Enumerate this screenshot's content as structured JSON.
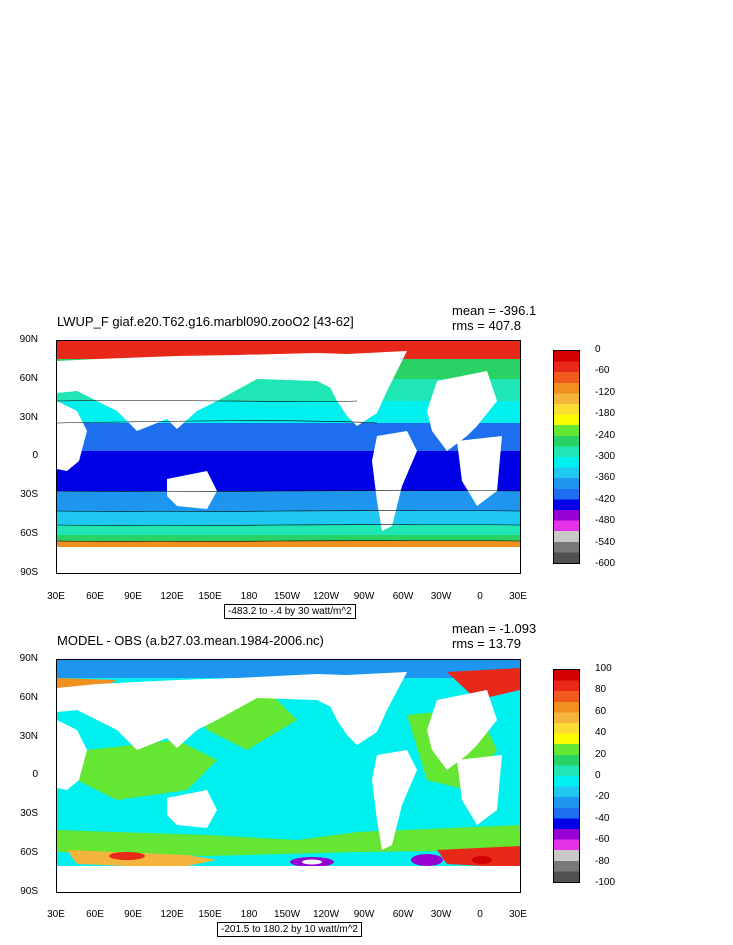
{
  "panels": [
    {
      "title": "LWUP_F giaf.e20.T62.g16.marbl090.zooO2 [43-62]",
      "mean": "mean = -396.1",
      "rms": "rms = 407.8",
      "range": "-483.2 to -.4 by 30 watt/m^2",
      "yticks": [
        "90N",
        "60N",
        "30N",
        "0",
        "30S",
        "60S",
        "90S"
      ],
      "xticks": [
        "30E",
        "60E",
        "90E",
        "120E",
        "150E",
        "180",
        "150W",
        "120W",
        "90W",
        "60W",
        "30W",
        "0",
        "30E"
      ],
      "colorbar": {
        "labels": [
          "0",
          "-60",
          "-120",
          "-180",
          "-240",
          "-300",
          "-360",
          "-420",
          "-480",
          "-540",
          "-600"
        ],
        "colors": [
          "#d40000",
          "#e82818",
          "#f05a1e",
          "#f0901e",
          "#f5b43c",
          "#fadc32",
          "#fafa00",
          "#64e632",
          "#28d264",
          "#1ee6b4",
          "#00f0f0",
          "#1ec8f0",
          "#1e96f0",
          "#1e6ef0",
          "#0000e6",
          "#9600d2",
          "#e632e6",
          "#c8c8c8",
          "#787878",
          "#505050"
        ]
      }
    },
    {
      "title": "MODEL - OBS (a.b27.03.mean.1984-2006.nc)",
      "mean": "mean = -1.093",
      "rms": "rms = 13.79",
      "range": "-201.5 to 180.2 by 10 watt/m^2",
      "yticks": [
        "90N",
        "60N",
        "30N",
        "0",
        "30S",
        "60S",
        "90S"
      ],
      "xticks": [
        "30E",
        "60E",
        "90E",
        "120E",
        "150E",
        "180",
        "150W",
        "120W",
        "90W",
        "60W",
        "30W",
        "0",
        "30E"
      ],
      "colorbar": {
        "labels": [
          "100",
          "80",
          "60",
          "40",
          "20",
          "0",
          "-20",
          "-40",
          "-60",
          "-80",
          "-100"
        ],
        "colors": [
          "#d40000",
          "#e82818",
          "#f05a1e",
          "#f0901e",
          "#f5b43c",
          "#fadc32",
          "#fafa00",
          "#64e632",
          "#28d264",
          "#1ee6b4",
          "#00f0f0",
          "#1ec8f0",
          "#1e96f0",
          "#1e6ef0",
          "#0000e6",
          "#9600d2",
          "#e632e6",
          "#c8c8c8",
          "#787878",
          "#505050"
        ]
      }
    }
  ]
}
